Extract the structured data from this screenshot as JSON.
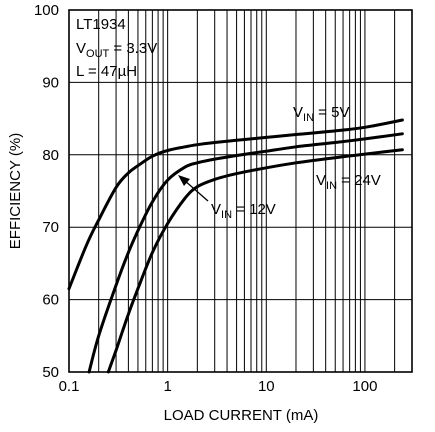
{
  "chart_data": {
    "type": "line",
    "title": "",
    "xlabel": "LOAD CURRENT (mA)",
    "ylabel": "EFFICIENCY (%)",
    "xscale": "log",
    "xlim": [
      0.1,
      300
    ],
    "ylim": [
      50,
      100
    ],
    "xticks": [
      {
        "value": 0.1,
        "label": "0.1"
      },
      {
        "value": 1,
        "label": "1"
      },
      {
        "value": 10,
        "label": "10"
      },
      {
        "value": 100,
        "label": "100"
      }
    ],
    "yticks": [
      {
        "value": 50,
        "label": "50"
      },
      {
        "value": 60,
        "label": "60"
      },
      {
        "value": 70,
        "label": "70"
      },
      {
        "value": 80,
        "label": "80"
      },
      {
        "value": 90,
        "label": "90"
      },
      {
        "value": 100,
        "label": "100"
      }
    ],
    "grid": true,
    "annotation": {
      "part": "LT1934",
      "vout_main": "V",
      "vout_sub": "OUT",
      "vout_value": " = 3.3V",
      "inductor": "L = 47µH"
    },
    "series": [
      {
        "label_main": "V",
        "label_sub": "IN",
        "label_value": " = 5V",
        "x": [
          0.1,
          0.15,
          0.2,
          0.3,
          0.4,
          0.5,
          0.7,
          1,
          1.5,
          2,
          3,
          5,
          10,
          20,
          50,
          100,
          240
        ],
        "y": [
          61.5,
          67.5,
          71,
          75.5,
          77.5,
          78.5,
          79.8,
          80.6,
          81.1,
          81.4,
          81.7,
          82,
          82.4,
          82.8,
          83.3,
          83.8,
          84.8
        ]
      },
      {
        "label_main": "V",
        "label_sub": "IN",
        "label_value": " = 12V",
        "x": [
          0.16,
          0.2,
          0.3,
          0.4,
          0.5,
          0.7,
          1,
          1.5,
          2,
          3,
          5,
          10,
          20,
          50,
          100,
          240
        ],
        "y": [
          50,
          55,
          62,
          66.5,
          69.5,
          73.5,
          76.5,
          78.3,
          78.9,
          79.4,
          79.9,
          80.5,
          81.1,
          81.7,
          82.2,
          82.9
        ]
      },
      {
        "label_main": "V",
        "label_sub": "IN",
        "label_value": " = 24V",
        "x": [
          0.25,
          0.3,
          0.4,
          0.5,
          0.7,
          1,
          1.5,
          2,
          3,
          5,
          10,
          20,
          50,
          100,
          240
        ],
        "y": [
          50,
          53,
          58,
          61.5,
          66.5,
          70.5,
          74,
          75.6,
          76.6,
          77.4,
          78.2,
          78.9,
          79.6,
          80.1,
          80.7
        ]
      }
    ]
  }
}
